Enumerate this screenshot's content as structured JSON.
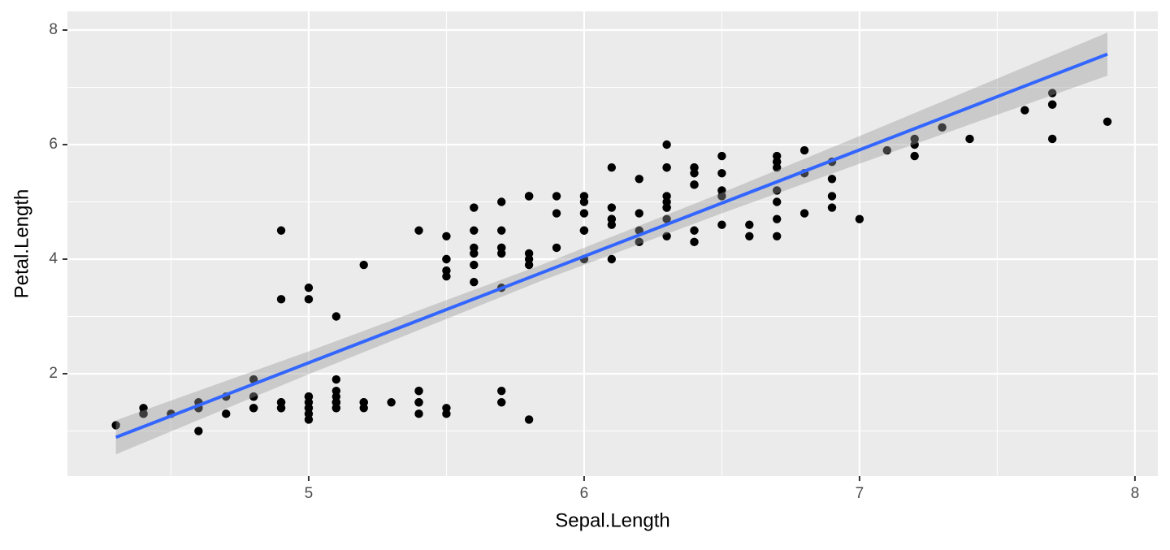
{
  "chart_data": {
    "type": "scatter",
    "x_label": "Sepal.Length",
    "y_label": "Petal.Length",
    "x": [
      5.1,
      4.9,
      4.7,
      4.6,
      5.0,
      5.4,
      4.6,
      5.0,
      4.4,
      4.9,
      5.4,
      4.8,
      4.8,
      4.3,
      5.8,
      5.7,
      5.4,
      5.1,
      5.7,
      5.1,
      5.4,
      5.1,
      4.6,
      5.1,
      4.8,
      5.0,
      5.0,
      5.2,
      5.2,
      4.7,
      4.8,
      5.4,
      5.2,
      5.5,
      4.9,
      5.0,
      5.5,
      4.9,
      4.4,
      5.1,
      5.0,
      4.5,
      4.4,
      5.0,
      5.1,
      4.8,
      5.1,
      4.6,
      5.3,
      5.0,
      7.0,
      6.4,
      6.9,
      5.5,
      6.5,
      5.7,
      6.3,
      4.9,
      6.6,
      5.2,
      5.0,
      5.9,
      6.0,
      6.1,
      5.6,
      6.7,
      5.6,
      5.8,
      6.2,
      5.6,
      5.9,
      6.1,
      6.3,
      6.1,
      6.4,
      6.6,
      6.8,
      6.7,
      6.0,
      5.7,
      5.5,
      5.5,
      5.8,
      6.0,
      5.4,
      6.0,
      6.7,
      6.3,
      5.6,
      5.5,
      5.5,
      6.1,
      5.8,
      5.0,
      5.6,
      5.7,
      5.7,
      6.2,
      5.1,
      5.7,
      6.3,
      5.8,
      7.1,
      6.3,
      6.5,
      7.6,
      4.9,
      7.3,
      6.7,
      7.2,
      6.5,
      6.4,
      6.8,
      5.7,
      5.8,
      6.4,
      6.5,
      7.7,
      7.7,
      6.0,
      6.9,
      5.6,
      7.7,
      6.3,
      6.7,
      7.2,
      6.2,
      6.1,
      6.4,
      7.2,
      7.4,
      7.9,
      6.4,
      6.3,
      6.1,
      7.7,
      6.3,
      6.4,
      6.0,
      6.9,
      6.7,
      6.9,
      5.8,
      6.8,
      6.7,
      6.7,
      6.3,
      6.5,
      6.2,
      5.9
    ],
    "y": [
      1.4,
      1.4,
      1.3,
      1.5,
      1.4,
      1.7,
      1.4,
      1.5,
      1.4,
      1.5,
      1.5,
      1.6,
      1.4,
      1.1,
      1.2,
      1.5,
      1.3,
      1.4,
      1.7,
      1.5,
      1.7,
      1.5,
      1.0,
      1.7,
      1.9,
      1.6,
      1.6,
      1.5,
      1.4,
      1.6,
      1.6,
      1.5,
      1.5,
      1.4,
      1.5,
      1.2,
      1.3,
      1.4,
      1.3,
      1.5,
      1.3,
      1.3,
      1.3,
      1.6,
      1.9,
      1.4,
      1.6,
      1.4,
      1.5,
      1.4,
      4.7,
      4.5,
      4.9,
      4.0,
      4.6,
      4.5,
      4.7,
      3.3,
      4.6,
      3.9,
      3.5,
      4.2,
      4.0,
      4.7,
      3.6,
      4.4,
      4.5,
      4.1,
      4.5,
      3.9,
      4.8,
      4.0,
      4.9,
      4.7,
      4.3,
      4.4,
      4.8,
      5.0,
      4.5,
      3.5,
      3.8,
      3.7,
      3.9,
      5.1,
      4.5,
      4.5,
      4.7,
      4.4,
      4.1,
      4.0,
      4.4,
      4.6,
      4.0,
      3.3,
      4.2,
      4.2,
      4.2,
      4.3,
      3.0,
      4.1,
      6.0,
      5.1,
      5.9,
      5.6,
      5.8,
      6.6,
      4.5,
      6.3,
      5.8,
      6.1,
      5.1,
      5.3,
      5.5,
      5.0,
      5.1,
      5.3,
      5.5,
      6.7,
      6.9,
      5.0,
      5.7,
      4.9,
      6.7,
      4.9,
      5.7,
      6.0,
      4.8,
      4.9,
      5.6,
      5.8,
      6.1,
      6.4,
      5.6,
      5.1,
      5.6,
      6.1,
      5.6,
      5.5,
      4.8,
      5.4,
      5.6,
      5.1,
      5.1,
      5.9,
      5.7,
      5.2,
      5.0,
      5.2,
      5.4,
      5.1
    ],
    "color": "#000000",
    "fit": {
      "x": [
        4.3,
        7.9
      ],
      "y": [
        0.89,
        7.58
      ],
      "color": "#3366ff"
    },
    "band": {
      "x": [
        4.3,
        5.0,
        5.843,
        6.5,
        7.0,
        7.9
      ],
      "lower": [
        0.593,
        1.991,
        3.618,
        4.8,
        5.667,
        7.204
      ],
      "upper": [
        1.187,
        2.391,
        3.898,
        5.158,
        6.149,
        7.956
      ],
      "color": "#999999"
    },
    "xlim": [
      4.124,
      8.083
    ],
    "ylim": [
      0.213,
      8.326
    ],
    "xticks": [
      5,
      6,
      7,
      8
    ],
    "yticks": [
      2,
      4,
      6,
      8
    ],
    "minor_xticks": [
      4.5,
      5.5,
      6.5,
      7.5
    ],
    "minor_yticks": [
      1,
      3,
      5,
      7
    ],
    "grid": true
  }
}
